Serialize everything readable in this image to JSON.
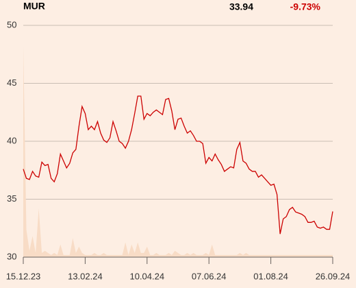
{
  "chart_data": {
    "type": "line",
    "title": "MUR",
    "last_price": "33.94",
    "change": "-9.73%",
    "xlim": [
      0,
      100
    ],
    "xticks": [
      {
        "value": 0,
        "label": "15.12.23"
      },
      {
        "value": 20,
        "label": "13.02.24"
      },
      {
        "value": 40,
        "label": "10.04.24"
      },
      {
        "value": 60,
        "label": "07.06.24"
      },
      {
        "value": 80,
        "label": "01.08.24"
      },
      {
        "value": 100,
        "label": "26.09.24"
      }
    ],
    "ylim": [
      30,
      50
    ],
    "yticks": [
      30,
      35,
      40,
      45,
      50
    ],
    "grid": true,
    "y2lim": [
      0,
      100
    ],
    "series": [
      {
        "name": "price",
        "color": "#cc0000",
        "values": [
          37.6,
          36.8,
          36.7,
          37.4,
          37.0,
          36.9,
          38.2,
          37.9,
          38.0,
          36.8,
          36.5,
          37.2,
          38.9,
          38.3,
          37.7,
          38.1,
          39.0,
          39.3,
          41.3,
          43.0,
          42.4,
          41.0,
          41.3,
          41.0,
          41.7,
          40.7,
          40.1,
          39.9,
          40.3,
          41.7,
          40.9,
          40.0,
          39.8,
          39.4,
          40.0,
          41.0,
          42.4,
          43.9,
          43.9,
          41.9,
          42.4,
          42.2,
          42.5,
          42.7,
          42.5,
          42.3,
          43.6,
          43.7,
          42.6,
          41.0,
          41.9,
          42.0,
          41.3,
          40.7,
          40.9,
          40.5,
          40.0,
          40.0,
          39.8,
          38.1,
          38.6,
          38.3,
          38.9,
          38.4,
          38.0,
          37.4,
          37.6,
          37.8,
          37.7,
          39.3,
          39.9,
          38.3,
          38.1,
          37.6,
          37.4,
          37.4,
          36.9,
          37.1,
          36.8,
          36.5,
          36.2,
          36.3,
          35.4,
          32.0,
          33.3,
          33.5,
          34.1,
          34.3,
          33.9,
          33.8,
          33.7,
          33.5,
          33.0,
          33.0,
          33.1,
          32.6,
          32.5,
          32.6,
          32.4,
          32.4,
          33.94
        ]
      },
      {
        "name": "volume",
        "color": "#f8dcc6",
        "axis": "y2",
        "values": [
          100,
          13,
          3,
          10,
          2,
          23,
          2,
          3,
          2,
          1,
          2,
          1,
          6,
          1,
          1,
          1,
          9,
          2,
          5,
          2,
          1,
          1,
          1,
          2,
          1,
          1,
          2,
          1,
          1,
          1,
          1,
          1,
          1,
          7,
          1,
          6,
          2,
          7,
          2,
          2,
          5,
          1,
          1,
          2,
          1,
          1,
          1,
          2,
          1,
          3,
          2,
          1,
          1,
          2,
          1,
          2,
          1,
          1,
          1,
          2,
          1,
          6,
          1,
          1,
          1,
          1,
          1,
          1,
          1,
          1,
          2,
          1,
          2,
          1,
          1,
          1,
          1,
          1,
          1,
          1,
          1,
          1,
          1,
          1,
          1,
          1,
          1,
          1,
          1,
          1,
          1,
          1,
          1,
          1,
          1,
          1,
          1,
          1,
          1,
          1,
          1
        ]
      }
    ]
  }
}
